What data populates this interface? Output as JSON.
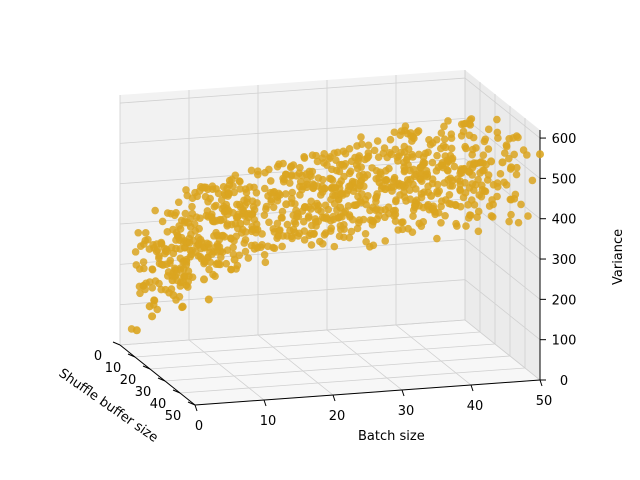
{
  "chart_data": {
    "type": "scatter",
    "projection": "3d",
    "title": "",
    "xlabel": "Batch size",
    "ylabel": "Shuffle buffer size",
    "zlabel": "Variance",
    "xlim": [
      0,
      50
    ],
    "ylim": [
      0,
      50
    ],
    "zlim": [
      0,
      620
    ],
    "xticks": [
      "0",
      "10",
      "20",
      "30",
      "40",
      "50"
    ],
    "yticks": [
      "0",
      "10",
      "20",
      "30",
      "40",
      "50"
    ],
    "zticks": [
      "0",
      "100",
      "200",
      "300",
      "400",
      "500",
      "600"
    ],
    "grid": true,
    "marker_color": "#DAA520",
    "series": [
      {
        "description": "points lie on a ridge: variance rises with shuffle buffer size and stays roughly 300–560 across batch size; front-left corner points near 10–50",
        "points": [
          {
            "x": 2,
            "y": 2,
            "z": 40
          },
          {
            "x": 4,
            "y": 3,
            "z": 75
          },
          {
            "x": 3,
            "y": 6,
            "z": 110
          },
          {
            "x": 6,
            "y": 8,
            "z": 140
          },
          {
            "x": 8,
            "y": 5,
            "z": 100
          },
          {
            "x": 5,
            "y": 12,
            "z": 190
          },
          {
            "x": 10,
            "y": 10,
            "z": 180
          },
          {
            "x": 12,
            "y": 4,
            "z": 110
          },
          {
            "x": 9,
            "y": 15,
            "z": 240
          },
          {
            "x": 14,
            "y": 12,
            "z": 230
          },
          {
            "x": 7,
            "y": 20,
            "z": 300
          },
          {
            "x": 16,
            "y": 18,
            "z": 320
          },
          {
            "x": 12,
            "y": 25,
            "z": 360
          },
          {
            "x": 20,
            "y": 14,
            "z": 300
          },
          {
            "x": 18,
            "y": 28,
            "z": 410
          },
          {
            "x": 22,
            "y": 22,
            "z": 380
          },
          {
            "x": 25,
            "y": 30,
            "z": 430
          },
          {
            "x": 28,
            "y": 18,
            "z": 360
          },
          {
            "x": 30,
            "y": 35,
            "z": 470
          },
          {
            "x": 33,
            "y": 25,
            "z": 420
          },
          {
            "x": 35,
            "y": 40,
            "z": 500
          },
          {
            "x": 38,
            "y": 30,
            "z": 460
          },
          {
            "x": 40,
            "y": 45,
            "z": 520
          },
          {
            "x": 43,
            "y": 35,
            "z": 480
          },
          {
            "x": 45,
            "y": 48,
            "z": 540
          },
          {
            "x": 48,
            "y": 40,
            "z": 500
          },
          {
            "x": 50,
            "y": 50,
            "z": 560
          },
          {
            "x": 49,
            "y": 22,
            "z": 460
          },
          {
            "x": 46,
            "y": 10,
            "z": 380
          },
          {
            "x": 44,
            "y": 5,
            "z": 330
          }
        ]
      }
    ]
  }
}
